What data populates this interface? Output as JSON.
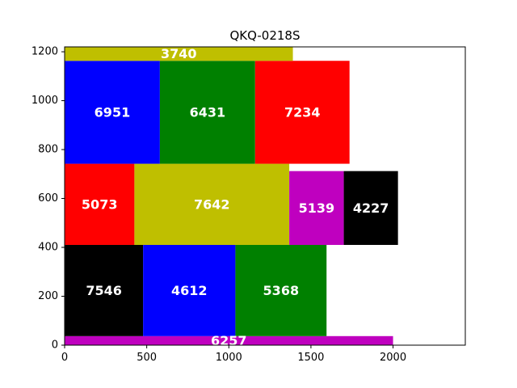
{
  "chart_data": {
    "type": "bar",
    "title": "QKQ-0218S",
    "xlabel": "",
    "ylabel": "",
    "xlim": [
      0,
      2440
    ],
    "ylim": [
      0,
      1220
    ],
    "xticks": [
      0,
      500,
      1000,
      1500,
      2000
    ],
    "yticks": [
      0,
      200,
      400,
      600,
      800,
      1000,
      1200
    ],
    "grid": false,
    "colors": {
      "magenta": "#bf00bf",
      "yellow": "#bfbf00",
      "blue": "#0000ff",
      "green": "#008000",
      "red": "#ff0000",
      "black": "#000000"
    },
    "blocks": [
      {
        "label": "6257",
        "x0": 0,
        "x1": 2000,
        "y0": 0,
        "y1": 37,
        "color": "#bf00bf"
      },
      {
        "label": "7546",
        "x0": 0,
        "x1": 478,
        "y0": 37,
        "y1": 410,
        "color": "#000000"
      },
      {
        "label": "4612",
        "x0": 478,
        "x1": 1040,
        "y0": 37,
        "y1": 410,
        "color": "#0000ff"
      },
      {
        "label": "5368",
        "x0": 1040,
        "x1": 1595,
        "y0": 37,
        "y1": 410,
        "color": "#008000"
      },
      {
        "label": "5073",
        "x0": 0,
        "x1": 425,
        "y0": 410,
        "y1": 742,
        "color": "#ff0000"
      },
      {
        "label": "7642",
        "x0": 425,
        "x1": 1368,
        "y0": 410,
        "y1": 742,
        "color": "#bfbf00"
      },
      {
        "label": "5139",
        "x0": 1368,
        "x1": 1700,
        "y0": 410,
        "y1": 712,
        "color": "#bf00bf"
      },
      {
        "label": "4227",
        "x0": 1700,
        "x1": 2030,
        "y0": 410,
        "y1": 712,
        "color": "#000000"
      },
      {
        "label": "6951",
        "x0": 0,
        "x1": 580,
        "y0": 742,
        "y1": 1163,
        "color": "#0000ff"
      },
      {
        "label": "6431",
        "x0": 580,
        "x1": 1160,
        "y0": 742,
        "y1": 1163,
        "color": "#008000"
      },
      {
        "label": "7234",
        "x0": 1160,
        "x1": 1735,
        "y0": 742,
        "y1": 1163,
        "color": "#ff0000"
      },
      {
        "label": "3740",
        "x0": 0,
        "x1": 1390,
        "y0": 1163,
        "y1": 1220,
        "color": "#bfbf00"
      }
    ]
  }
}
